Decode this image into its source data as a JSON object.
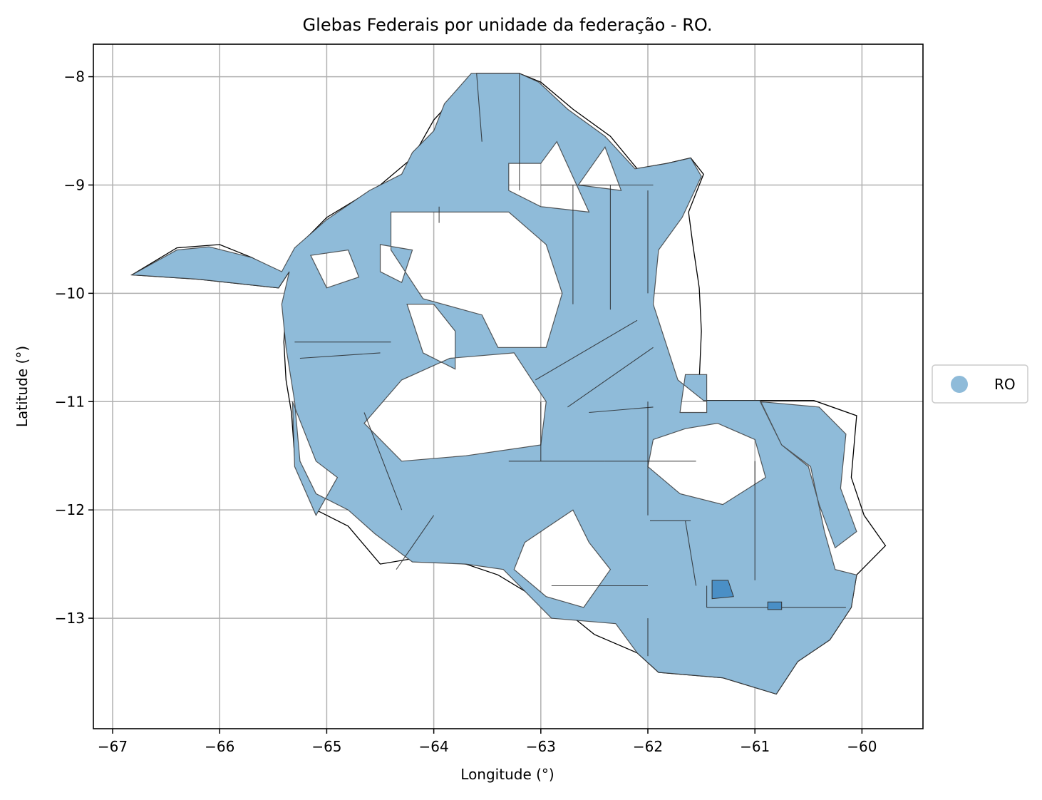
{
  "chart_data": {
    "type": "map",
    "title": "Glebas Federais por unidade da federação - RO.",
    "xlabel": "Longitude (°)",
    "ylabel": "Latitude (°)",
    "xlim": [
      -67.18,
      -59.43
    ],
    "ylim": [
      -14.02,
      -7.7
    ],
    "xticks": [
      -67,
      -66,
      -65,
      -64,
      -63,
      -62,
      -61,
      -60
    ],
    "xtick_labels": [
      "−67",
      "−66",
      "−65",
      "−64",
      "−63",
      "−62",
      "−61",
      "−60"
    ],
    "yticks": [
      -8,
      -9,
      -10,
      -11,
      -12,
      -13
    ],
    "ytick_labels": [
      "−8",
      "−9",
      "−10",
      "−11",
      "−12",
      "−13"
    ],
    "grid": true,
    "legend": {
      "placement": "center-right-outside",
      "entries": [
        {
          "label": "RO",
          "color": "#8fbbd9"
        }
      ]
    },
    "colors": {
      "fill": "#8fbbd9",
      "fill_dark": "#4a8fc6",
      "edge": "#333333"
    },
    "state_outline": [
      [
        -66.82,
        -9.83
      ],
      [
        -66.4,
        -9.58
      ],
      [
        -66.0,
        -9.55
      ],
      [
        -65.7,
        -9.67
      ],
      [
        -65.42,
        -9.83
      ],
      [
        -65.3,
        -9.6
      ],
      [
        -65.0,
        -9.3
      ],
      [
        -64.5,
        -9.0
      ],
      [
        -64.2,
        -8.75
      ],
      [
        -64.0,
        -8.4
      ],
      [
        -63.6,
        -7.97
      ],
      [
        -63.2,
        -7.97
      ],
      [
        -63.0,
        -8.05
      ],
      [
        -62.7,
        -8.3
      ],
      [
        -62.35,
        -8.55
      ],
      [
        -62.1,
        -8.85
      ],
      [
        -61.82,
        -8.8
      ],
      [
        -61.6,
        -8.75
      ],
      [
        -61.48,
        -8.9
      ],
      [
        -61.62,
        -9.25
      ],
      [
        -61.58,
        -9.55
      ],
      [
        -61.52,
        -9.95
      ],
      [
        -61.5,
        -10.35
      ],
      [
        -61.52,
        -10.8
      ],
      [
        -61.48,
        -10.99
      ],
      [
        -60.45,
        -10.99
      ],
      [
        -60.05,
        -11.13
      ],
      [
        -60.1,
        -11.7
      ],
      [
        -59.98,
        -12.05
      ],
      [
        -59.78,
        -12.33
      ],
      [
        -60.05,
        -12.6
      ],
      [
        -60.1,
        -12.9
      ],
      [
        -60.3,
        -13.2
      ],
      [
        -60.6,
        -13.4
      ],
      [
        -60.8,
        -13.7
      ],
      [
        -61.3,
        -13.55
      ],
      [
        -61.9,
        -13.5
      ],
      [
        -62.1,
        -13.32
      ],
      [
        -62.5,
        -13.15
      ],
      [
        -62.75,
        -12.95
      ],
      [
        -63.1,
        -12.78
      ],
      [
        -63.4,
        -12.6
      ],
      [
        -63.7,
        -12.5
      ],
      [
        -64.2,
        -12.45
      ],
      [
        -64.5,
        -12.5
      ],
      [
        -64.8,
        -12.15
      ],
      [
        -65.1,
        -12.0
      ],
      [
        -65.2,
        -11.75
      ],
      [
        -65.3,
        -11.5
      ],
      [
        -65.33,
        -11.1
      ],
      [
        -65.38,
        -10.8
      ],
      [
        -65.4,
        -10.45
      ],
      [
        -65.38,
        -10.1
      ],
      [
        -65.35,
        -9.8
      ],
      [
        -65.45,
        -9.95
      ],
      [
        -66.2,
        -9.87
      ],
      [
        -66.82,
        -9.83
      ]
    ],
    "glebas_outline": [
      [
        -66.82,
        -9.83
      ],
      [
        -66.4,
        -9.6
      ],
      [
        -66.1,
        -9.57
      ],
      [
        -65.7,
        -9.67
      ],
      [
        -65.42,
        -9.8
      ],
      [
        -65.3,
        -9.58
      ],
      [
        -65.0,
        -9.32
      ],
      [
        -64.6,
        -9.05
      ],
      [
        -64.3,
        -8.9
      ],
      [
        -64.2,
        -8.7
      ],
      [
        -64.0,
        -8.5
      ],
      [
        -63.9,
        -8.25
      ],
      [
        -63.65,
        -7.97
      ],
      [
        -63.2,
        -7.97
      ],
      [
        -63.02,
        -8.05
      ],
      [
        -62.75,
        -8.3
      ],
      [
        -62.4,
        -8.55
      ],
      [
        -62.12,
        -8.85
      ],
      [
        -61.82,
        -8.8
      ],
      [
        -61.6,
        -8.75
      ],
      [
        -61.5,
        -8.92
      ],
      [
        -61.68,
        -9.3
      ],
      [
        -61.9,
        -9.6
      ],
      [
        -61.95,
        -10.1
      ],
      [
        -61.72,
        -10.8
      ],
      [
        -61.48,
        -10.99
      ],
      [
        -60.95,
        -10.99
      ],
      [
        -60.75,
        -11.4
      ],
      [
        -60.48,
        -11.6
      ],
      [
        -60.35,
        -12.2
      ],
      [
        -60.25,
        -12.55
      ],
      [
        -60.05,
        -12.6
      ],
      [
        -60.1,
        -12.9
      ],
      [
        -60.3,
        -13.2
      ],
      [
        -60.6,
        -13.4
      ],
      [
        -60.8,
        -13.7
      ],
      [
        -61.3,
        -13.55
      ],
      [
        -61.9,
        -13.5
      ],
      [
        -62.1,
        -13.32
      ],
      [
        -62.3,
        -13.05
      ],
      [
        -62.9,
        -13.0
      ],
      [
        -63.1,
        -12.8
      ],
      [
        -63.35,
        -12.55
      ],
      [
        -63.7,
        -12.5
      ],
      [
        -64.2,
        -12.48
      ],
      [
        -64.55,
        -12.22
      ],
      [
        -64.8,
        -12.0
      ],
      [
        -65.1,
        -11.85
      ],
      [
        -65.25,
        -11.55
      ],
      [
        -65.3,
        -11.0
      ],
      [
        -65.38,
        -10.5
      ],
      [
        -65.42,
        -10.1
      ],
      [
        -65.35,
        -9.8
      ],
      [
        -65.45,
        -9.95
      ],
      [
        -66.2,
        -9.87
      ],
      [
        -66.82,
        -9.83
      ]
    ],
    "holes": [
      [
        [
          -64.4,
          -9.25
        ],
        [
          -63.3,
          -9.25
        ],
        [
          -62.95,
          -9.55
        ],
        [
          -62.8,
          -10.0
        ],
        [
          -62.95,
          -10.5
        ],
        [
          -63.4,
          -10.5
        ],
        [
          -63.55,
          -10.2
        ],
        [
          -64.1,
          -10.05
        ],
        [
          -64.4,
          -9.6
        ]
      ],
      [
        [
          -63.3,
          -8.8
        ],
        [
          -63.0,
          -8.8
        ],
        [
          -62.85,
          -8.6
        ],
        [
          -62.55,
          -9.25
        ],
        [
          -63.0,
          -9.2
        ],
        [
          -63.3,
          -9.05
        ]
      ],
      [
        [
          -62.65,
          -9.0
        ],
        [
          -62.4,
          -8.65
        ],
        [
          -62.25,
          -9.05
        ]
      ],
      [
        [
          -63.85,
          -10.6
        ],
        [
          -63.25,
          -10.55
        ],
        [
          -62.95,
          -11.0
        ],
        [
          -63.0,
          -11.4
        ],
        [
          -63.7,
          -11.5
        ],
        [
          -64.3,
          -11.55
        ],
        [
          -64.65,
          -11.2
        ],
        [
          -64.3,
          -10.8
        ]
      ],
      [
        [
          -65.32,
          -11.0
        ],
        [
          -65.1,
          -11.55
        ],
        [
          -64.9,
          -11.7
        ],
        [
          -65.1,
          -12.05
        ],
        [
          -65.3,
          -11.6
        ]
      ],
      [
        [
          -64.5,
          -9.55
        ],
        [
          -64.2,
          -9.6
        ],
        [
          -64.3,
          -9.9
        ],
        [
          -64.5,
          -9.8
        ]
      ],
      [
        [
          -63.15,
          -12.3
        ],
        [
          -62.7,
          -12.0
        ],
        [
          -62.55,
          -12.3
        ],
        [
          -62.35,
          -12.55
        ],
        [
          -62.6,
          -12.9
        ],
        [
          -62.95,
          -12.8
        ],
        [
          -63.25,
          -12.55
        ]
      ],
      [
        [
          -61.65,
          -11.25
        ],
        [
          -61.35,
          -11.2
        ],
        [
          -61.0,
          -11.35
        ],
        [
          -60.9,
          -11.7
        ],
        [
          -61.3,
          -11.95
        ],
        [
          -61.7,
          -11.85
        ],
        [
          -62.0,
          -11.6
        ],
        [
          -61.95,
          -11.35
        ]
      ],
      [
        [
          -60.95,
          -11.0
        ],
        [
          -60.4,
          -11.05
        ],
        [
          -60.15,
          -11.3
        ],
        [
          -60.2,
          -11.8
        ],
        [
          -60.05,
          -12.2
        ],
        [
          -60.25,
          -12.35
        ],
        [
          -60.4,
          -11.95
        ],
        [
          -60.5,
          -11.6
        ],
        [
          -60.75,
          -11.4
        ]
      ],
      [
        [
          -61.45,
          -10.75
        ],
        [
          -61.65,
          -10.75
        ],
        [
          -61.7,
          -11.1
        ],
        [
          -61.45,
          -11.1
        ]
      ],
      [
        [
          -65.15,
          -9.65
        ],
        [
          -64.8,
          -9.6
        ],
        [
          -64.7,
          -9.85
        ],
        [
          -65.0,
          -9.95
        ]
      ],
      [
        [
          -64.25,
          -10.1
        ],
        [
          -64.0,
          -10.1
        ],
        [
          -63.8,
          -10.35
        ],
        [
          -63.8,
          -10.7
        ],
        [
          -64.1,
          -10.55
        ]
      ]
    ],
    "dark_patches": [
      [
        [
          -61.4,
          -12.65
        ],
        [
          -61.25,
          -12.65
        ],
        [
          -61.2,
          -12.8
        ],
        [
          -61.4,
          -12.82
        ]
      ],
      [
        [
          -60.88,
          -12.85
        ],
        [
          -60.75,
          -12.85
        ],
        [
          -60.75,
          -12.92
        ],
        [
          -60.88,
          -12.92
        ]
      ]
    ],
    "inner_lines": [
      [
        [
          -63.2,
          -7.97
        ],
        [
          -63.2,
          -9.05
        ]
      ],
      [
        [
          -63.6,
          -7.97
        ],
        [
          -63.55,
          -8.6
        ]
      ],
      [
        [
          -63.0,
          -9.0
        ],
        [
          -61.95,
          -9.0
        ]
      ],
      [
        [
          -62.7,
          -9.0
        ],
        [
          -62.7,
          -10.1
        ]
      ],
      [
        [
          -62.35,
          -9.0
        ],
        [
          -62.35,
          -10.15
        ]
      ],
      [
        [
          -62.0,
          -9.05
        ],
        [
          -62.0,
          -10.0
        ]
      ],
      [
        [
          -63.95,
          -9.2
        ],
        [
          -63.95,
          -9.35
        ]
      ],
      [
        [
          -65.3,
          -10.45
        ],
        [
          -64.4,
          -10.45
        ]
      ],
      [
        [
          -65.25,
          -10.6
        ],
        [
          -64.5,
          -10.55
        ]
      ],
      [
        [
          -63.0,
          -11.0
        ],
        [
          -63.0,
          -11.55
        ]
      ],
      [
        [
          -63.3,
          -11.55
        ],
        [
          -62.4,
          -11.55
        ]
      ],
      [
        [
          -62.4,
          -11.55
        ],
        [
          -61.55,
          -11.55
        ]
      ],
      [
        [
          -62.0,
          -11.0
        ],
        [
          -62.0,
          -12.05
        ]
      ],
      [
        [
          -61.0,
          -11.55
        ],
        [
          -61.0,
          -12.65
        ]
      ],
      [
        [
          -61.98,
          -12.1
        ],
        [
          -61.6,
          -12.1
        ]
      ],
      [
        [
          -61.65,
          -12.1
        ],
        [
          -61.55,
          -12.7
        ]
      ],
      [
        [
          -61.45,
          -12.7
        ],
        [
          -61.45,
          -12.9
        ]
      ],
      [
        [
          -61.45,
          -12.9
        ],
        [
          -60.15,
          -12.9
        ]
      ],
      [
        [
          -62.0,
          -13.0
        ],
        [
          -62.0,
          -13.35
        ]
      ],
      [
        [
          -62.9,
          -12.7
        ],
        [
          -62.0,
          -12.7
        ]
      ],
      [
        [
          -63.05,
          -10.8
        ],
        [
          -62.1,
          -10.25
        ]
      ],
      [
        [
          -62.75,
          -11.05
        ],
        [
          -61.95,
          -10.5
        ]
      ],
      [
        [
          -64.0,
          -12.05
        ],
        [
          -64.35,
          -12.55
        ]
      ],
      [
        [
          -64.65,
          -11.1
        ],
        [
          -64.3,
          -12.0
        ]
      ],
      [
        [
          -62.55,
          -11.1
        ],
        [
          -61.95,
          -11.05
        ]
      ]
    ]
  }
}
